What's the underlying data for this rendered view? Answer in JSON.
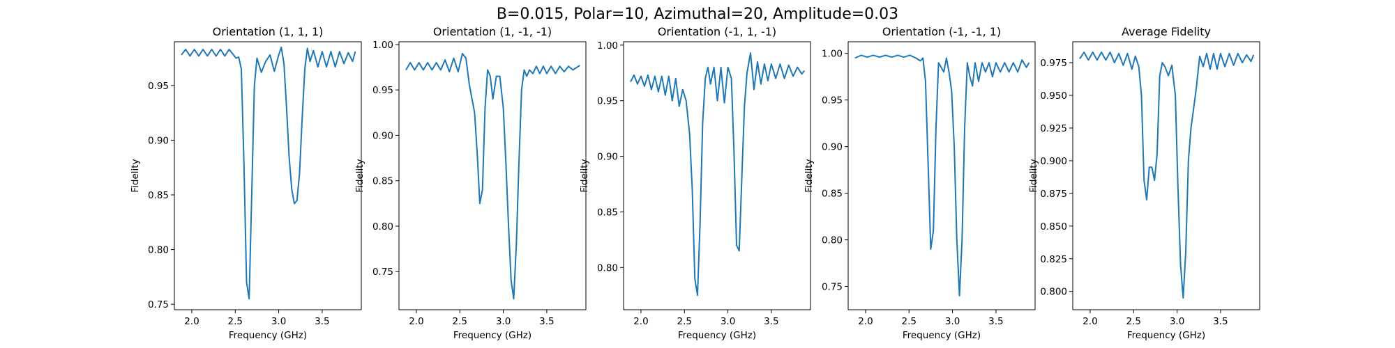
{
  "figure": {
    "suptitle": "B=0.015, Polar=10, Azimuthal=20, Amplitude=0.03",
    "line_color": "#1f77b4"
  },
  "chart_data": [
    {
      "type": "line",
      "title": "Orientation (1, 1, 1)",
      "xlabel": "Frequency (GHz)",
      "ylabel": "Fidelity",
      "xlim": [
        1.8,
        3.95
      ],
      "ylim": [
        0.745,
        0.99
      ],
      "xticks": [
        2.0,
        2.5,
        3.0,
        3.5
      ],
      "xtick_labels": [
        "2.0",
        "2.5",
        "3.0",
        "3.5"
      ],
      "yticks": [
        0.75,
        0.8,
        0.85,
        0.9,
        0.95
      ],
      "ytick_labels": [
        "0.75",
        "0.80",
        "0.85",
        "0.90",
        "0.95"
      ],
      "x": [
        1.88,
        1.93,
        1.98,
        2.03,
        2.08,
        2.13,
        2.18,
        2.23,
        2.28,
        2.33,
        2.38,
        2.43,
        2.48,
        2.51,
        2.54,
        2.57,
        2.6,
        2.63,
        2.66,
        2.69,
        2.72,
        2.75,
        2.8,
        2.85,
        2.9,
        2.95,
        3.0,
        3.03,
        3.06,
        3.09,
        3.12,
        3.15,
        3.18,
        3.21,
        3.24,
        3.27,
        3.3,
        3.33,
        3.36,
        3.4,
        3.45,
        3.5,
        3.55,
        3.6,
        3.65,
        3.7,
        3.75,
        3.8,
        3.85,
        3.88
      ],
      "y": [
        0.978,
        0.983,
        0.977,
        0.983,
        0.977,
        0.983,
        0.977,
        0.983,
        0.977,
        0.983,
        0.977,
        0.983,
        0.978,
        0.975,
        0.976,
        0.965,
        0.88,
        0.77,
        0.755,
        0.85,
        0.95,
        0.975,
        0.962,
        0.972,
        0.978,
        0.963,
        0.978,
        0.985,
        0.97,
        0.93,
        0.885,
        0.855,
        0.842,
        0.845,
        0.87,
        0.92,
        0.965,
        0.984,
        0.972,
        0.982,
        0.967,
        0.981,
        0.967,
        0.981,
        0.967,
        0.981,
        0.97,
        0.98,
        0.972,
        0.981
      ]
    },
    {
      "type": "line",
      "title": "Orientation (1, -1, -1)",
      "xlabel": "Frequency (GHz)",
      "ylabel": "Fidelity",
      "xlim": [
        1.8,
        3.95
      ],
      "ylim": [
        0.708,
        1.003
      ],
      "xticks": [
        2.0,
        2.5,
        3.0,
        3.5
      ],
      "xtick_labels": [
        "2.0",
        "2.5",
        "3.0",
        "3.5"
      ],
      "yticks": [
        0.75,
        0.8,
        0.85,
        0.9,
        0.95,
        1.0
      ],
      "ytick_labels": [
        "0.75",
        "0.80",
        "0.85",
        "0.90",
        "0.95",
        "1.00"
      ],
      "x": [
        1.88,
        1.93,
        1.98,
        2.03,
        2.08,
        2.13,
        2.18,
        2.23,
        2.28,
        2.33,
        2.38,
        2.43,
        2.48,
        2.53,
        2.57,
        2.61,
        2.64,
        2.67,
        2.7,
        2.73,
        2.76,
        2.79,
        2.82,
        2.85,
        2.88,
        2.92,
        2.96,
        3.0,
        3.03,
        3.06,
        3.09,
        3.12,
        3.15,
        3.18,
        3.21,
        3.24,
        3.27,
        3.3,
        3.34,
        3.38,
        3.42,
        3.46,
        3.5,
        3.55,
        3.6,
        3.65,
        3.7,
        3.75,
        3.8,
        3.88
      ],
      "y": [
        0.972,
        0.98,
        0.972,
        0.98,
        0.972,
        0.98,
        0.972,
        0.98,
        0.972,
        0.983,
        0.97,
        0.985,
        0.97,
        0.99,
        0.985,
        0.955,
        0.94,
        0.925,
        0.88,
        0.825,
        0.84,
        0.93,
        0.972,
        0.965,
        0.94,
        0.965,
        0.965,
        0.93,
        0.87,
        0.8,
        0.74,
        0.72,
        0.78,
        0.87,
        0.95,
        0.972,
        0.965,
        0.972,
        0.968,
        0.976,
        0.968,
        0.976,
        0.968,
        0.976,
        0.968,
        0.976,
        0.97,
        0.976,
        0.972,
        0.977
      ]
    },
    {
      "type": "line",
      "title": "Orientation (-1, 1, -1)",
      "xlabel": "Frequency (GHz)",
      "ylabel": "Fidelity",
      "xlim": [
        1.8,
        3.95
      ],
      "ylim": [
        0.762,
        1.003
      ],
      "xticks": [
        2.0,
        2.5,
        3.0,
        3.5
      ],
      "xtick_labels": [
        "2.0",
        "2.5",
        "3.0",
        "3.5"
      ],
      "yticks": [
        0.8,
        0.85,
        0.9,
        0.95,
        1.0
      ],
      "ytick_labels": [
        "0.80",
        "0.85",
        "0.90",
        "0.95",
        "1.00"
      ],
      "x": [
        1.88,
        1.92,
        1.96,
        2.0,
        2.04,
        2.08,
        2.12,
        2.16,
        2.2,
        2.24,
        2.28,
        2.32,
        2.36,
        2.4,
        2.44,
        2.48,
        2.52,
        2.56,
        2.59,
        2.62,
        2.65,
        2.68,
        2.71,
        2.74,
        2.77,
        2.8,
        2.84,
        2.88,
        2.92,
        2.96,
        3.0,
        3.04,
        3.07,
        3.1,
        3.13,
        3.16,
        3.19,
        3.22,
        3.26,
        3.3,
        3.34,
        3.38,
        3.42,
        3.46,
        3.5,
        3.55,
        3.6,
        3.65,
        3.7,
        3.75,
        3.8,
        3.85,
        3.88
      ],
      "y": [
        0.967,
        0.973,
        0.965,
        0.972,
        0.963,
        0.973,
        0.96,
        0.972,
        0.958,
        0.972,
        0.955,
        0.972,
        0.95,
        0.97,
        0.945,
        0.96,
        0.95,
        0.92,
        0.87,
        0.79,
        0.775,
        0.84,
        0.93,
        0.97,
        0.98,
        0.965,
        0.98,
        0.95,
        0.98,
        0.948,
        0.98,
        0.97,
        0.905,
        0.82,
        0.815,
        0.88,
        0.945,
        0.975,
        0.993,
        0.96,
        0.985,
        0.965,
        0.983,
        0.968,
        0.983,
        0.97,
        0.983,
        0.97,
        0.982,
        0.972,
        0.98,
        0.974,
        0.977
      ]
    },
    {
      "type": "line",
      "title": "Orientation (-1, -1, 1)",
      "xlabel": "Frequency (GHz)",
      "ylabel": "Fidelity",
      "xlim": [
        1.8,
        3.95
      ],
      "ylim": [
        0.725,
        1.0125
      ],
      "xticks": [
        2.0,
        2.5,
        3.0,
        3.5
      ],
      "xtick_labels": [
        "2.0",
        "2.5",
        "3.0",
        "3.5"
      ],
      "yticks": [
        0.75,
        0.8,
        0.85,
        0.9,
        0.95,
        1.0
      ],
      "ytick_labels": [
        "0.75",
        "0.80",
        "0.85",
        "0.90",
        "0.95",
        "1.00"
      ],
      "x": [
        1.88,
        1.95,
        2.02,
        2.09,
        2.16,
        2.23,
        2.3,
        2.37,
        2.44,
        2.51,
        2.58,
        2.63,
        2.66,
        2.69,
        2.72,
        2.75,
        2.78,
        2.81,
        2.84,
        2.87,
        2.9,
        2.93,
        2.96,
        2.99,
        3.02,
        3.05,
        3.08,
        3.11,
        3.14,
        3.17,
        3.2,
        3.23,
        3.26,
        3.3,
        3.34,
        3.38,
        3.42,
        3.46,
        3.5,
        3.55,
        3.6,
        3.65,
        3.7,
        3.75,
        3.8,
        3.85,
        3.88
      ],
      "y": [
        0.995,
        0.998,
        0.996,
        0.998,
        0.996,
        0.998,
        0.996,
        0.998,
        0.996,
        0.998,
        0.995,
        0.992,
        0.995,
        0.97,
        0.88,
        0.79,
        0.81,
        0.92,
        0.99,
        0.985,
        0.98,
        0.995,
        0.98,
        0.96,
        0.9,
        0.8,
        0.74,
        0.8,
        0.92,
        0.99,
        0.975,
        0.965,
        0.99,
        0.97,
        0.99,
        0.98,
        0.99,
        0.975,
        0.99,
        0.98,
        0.99,
        0.98,
        0.99,
        0.98,
        0.993,
        0.985,
        0.99
      ]
    },
    {
      "type": "line",
      "title": "Average Fidelity",
      "xlabel": "Frequency (GHz)",
      "ylabel": "Fidelity",
      "xlim": [
        1.8,
        3.95
      ],
      "ylim": [
        0.786,
        0.991
      ],
      "xticks": [
        2.0,
        2.5,
        3.0,
        3.5
      ],
      "xtick_labels": [
        "2.0",
        "2.5",
        "3.0",
        "3.5"
      ],
      "yticks": [
        0.8,
        0.825,
        0.85,
        0.875,
        0.9,
        0.925,
        0.95,
        0.975
      ],
      "ytick_labels": [
        "0.800",
        "0.825",
        "0.850",
        "0.875",
        "0.900",
        "0.925",
        "0.950",
        "0.975"
      ],
      "x": [
        1.88,
        1.93,
        1.98,
        2.03,
        2.08,
        2.13,
        2.18,
        2.23,
        2.28,
        2.33,
        2.38,
        2.43,
        2.48,
        2.52,
        2.56,
        2.59,
        2.62,
        2.65,
        2.68,
        2.71,
        2.74,
        2.77,
        2.8,
        2.83,
        2.86,
        2.9,
        2.94,
        2.98,
        3.01,
        3.04,
        3.07,
        3.1,
        3.13,
        3.16,
        3.19,
        3.22,
        3.26,
        3.3,
        3.34,
        3.38,
        3.42,
        3.46,
        3.5,
        3.55,
        3.6,
        3.65,
        3.7,
        3.75,
        3.8,
        3.85,
        3.88
      ],
      "y": [
        0.978,
        0.983,
        0.977,
        0.983,
        0.977,
        0.983,
        0.977,
        0.983,
        0.975,
        0.982,
        0.973,
        0.982,
        0.97,
        0.98,
        0.972,
        0.95,
        0.885,
        0.87,
        0.895,
        0.895,
        0.885,
        0.905,
        0.965,
        0.975,
        0.972,
        0.965,
        0.973,
        0.95,
        0.88,
        0.82,
        0.795,
        0.83,
        0.9,
        0.925,
        0.94,
        0.955,
        0.98,
        0.972,
        0.982,
        0.97,
        0.982,
        0.97,
        0.982,
        0.972,
        0.982,
        0.973,
        0.982,
        0.975,
        0.981,
        0.976,
        0.981
      ]
    }
  ]
}
